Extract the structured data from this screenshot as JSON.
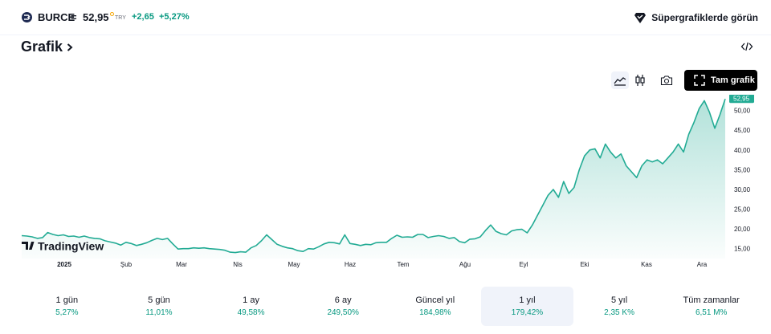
{
  "header": {
    "symbol": "BURCE",
    "separator": "=",
    "price": "52,95",
    "currency": "TRY",
    "change_abs": "+2,65",
    "change_pct": "+5,27%",
    "super_label": "Süpergrafiklerde görün"
  },
  "section": {
    "title": "Grafik"
  },
  "toolbar": {
    "full_chart_label": "Tam grafik"
  },
  "colors": {
    "line": "#22ab94",
    "positive": "#089981",
    "text": "#131722",
    "muted": "#6a6d78",
    "active_bg": "#f0f3fa"
  },
  "chart_data": {
    "type": "area",
    "title": "",
    "xlabel": "",
    "ylabel": "",
    "ylim": [
      12.5,
      54
    ],
    "y_ticks": [
      "50,00",
      "45,00",
      "40,00",
      "35,00",
      "30,00",
      "25,00",
      "20,00",
      "15,00"
    ],
    "y_tick_values": [
      50,
      45,
      40,
      35,
      30,
      25,
      20,
      15
    ],
    "x_tick_labels": [
      "2025",
      "Şub",
      "Mar",
      "Nis",
      "May",
      "Haz",
      "Tem",
      "Ağu",
      "Eyl",
      "Eki",
      "Kas",
      "Ara"
    ],
    "last_price_label": "52,95",
    "watermark": "TradingView",
    "series": [
      {
        "values": [
          18.3,
          18.2,
          18.0,
          17.6,
          17.8,
          19.1,
          18.6,
          18.3,
          18.5,
          18.1,
          18.2,
          17.9,
          18.2,
          17.8,
          17.6,
          17.5,
          17.0,
          16.7,
          16.4,
          15.9,
          16.6,
          16.3,
          15.8,
          16.1,
          16.5,
          17.1,
          17.6,
          17.3,
          17.6,
          16.2,
          14.9,
          15.0,
          15.0,
          15.2,
          15.1,
          15.2,
          15.0,
          14.9,
          14.8,
          14.6,
          14.1,
          14.0,
          14.2,
          14.1,
          15.2,
          15.8,
          17.0,
          18.5,
          17.3,
          16.1,
          15.6,
          15.2,
          15.0,
          14.5,
          14.3,
          15.0,
          14.9,
          15.5,
          16.2,
          16.6,
          16.5,
          16.2,
          18.5,
          16.3,
          16.1,
          15.8,
          16.1,
          16.0,
          16.5,
          16.6,
          16.6,
          17.6,
          18.4,
          17.9,
          18.0,
          17.9,
          18.6,
          18.6,
          17.8,
          18.1,
          18.3,
          18.1,
          17.6,
          17.8,
          16.8,
          16.5,
          17.4,
          17.5,
          18.0,
          19.6,
          21.0,
          19.4,
          18.8,
          18.5,
          19.5,
          19.8,
          19.9,
          19.0,
          21.0,
          23.5,
          26.0,
          28.5,
          30.0,
          28.0,
          32.0,
          29.0,
          30.5,
          35.0,
          38.5,
          40.0,
          40.3,
          38.0,
          41.5,
          39.5,
          38.0,
          39.0,
          36.0,
          34.5,
          33.0,
          36.0,
          37.5,
          37.0,
          37.5,
          36.5,
          38.0,
          39.5,
          41.5,
          39.5,
          44.0,
          47.0,
          50.5,
          52.5,
          49.5,
          45.5,
          49.0,
          52.95
        ]
      }
    ]
  },
  "periods": [
    {
      "label": "1 gün",
      "value": "5,27%"
    },
    {
      "label": "5 gün",
      "value": "11,01%"
    },
    {
      "label": "1 ay",
      "value": "49,58%"
    },
    {
      "label": "6 ay",
      "value": "249,50%"
    },
    {
      "label": "Güncel yıl",
      "value": "184,98%"
    },
    {
      "label": "1 yıl",
      "value": "179,42%",
      "active": true
    },
    {
      "label": "5 yıl",
      "value": "2,35 K%"
    },
    {
      "label": "Tüm zamanlar",
      "value": "6,51 M%"
    }
  ]
}
